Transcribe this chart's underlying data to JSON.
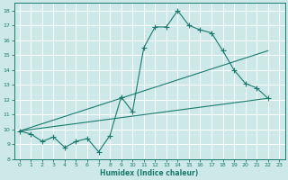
{
  "xlabel": "Humidex (Indice chaleur)",
  "bg_color": "#cde8e8",
  "grid_color": "#ffffff",
  "line_color": "#1a7a6e",
  "xlim": [
    -0.5,
    23.5
  ],
  "ylim": [
    8.0,
    18.5
  ],
  "xticks": [
    0,
    1,
    2,
    3,
    4,
    5,
    6,
    7,
    8,
    9,
    10,
    11,
    12,
    13,
    14,
    15,
    16,
    17,
    18,
    19,
    20,
    21,
    22,
    23
  ],
  "yticks": [
    8,
    9,
    10,
    11,
    12,
    13,
    14,
    15,
    16,
    17,
    18
  ],
  "line1_x": [
    0,
    1,
    2,
    3,
    4,
    5,
    6,
    7,
    8,
    9,
    10,
    11,
    12,
    13,
    14,
    15,
    16,
    17,
    18,
    19,
    20,
    21,
    22
  ],
  "line1_y": [
    9.9,
    9.7,
    9.2,
    9.5,
    8.8,
    9.2,
    9.4,
    8.5,
    9.6,
    12.2,
    11.2,
    15.5,
    16.9,
    16.9,
    18.0,
    17.0,
    16.7,
    16.5,
    15.3,
    14.0,
    13.1,
    12.8,
    12.1
  ],
  "line2_x": [
    0,
    22
  ],
  "line2_y": [
    9.9,
    15.3
  ],
  "line3_x": [
    0,
    22
  ],
  "line3_y": [
    9.9,
    12.1
  ]
}
